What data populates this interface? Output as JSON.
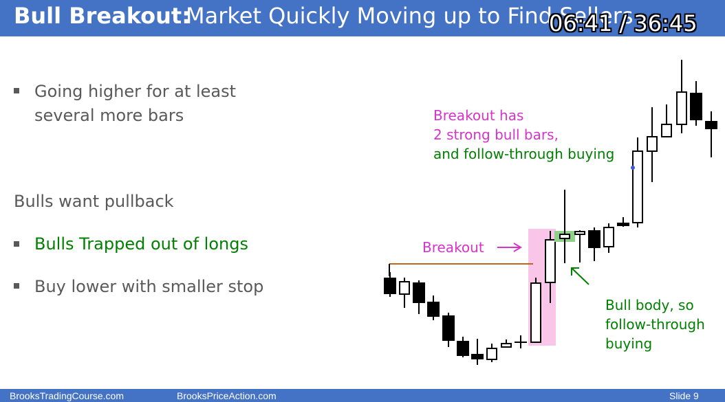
{
  "header": {
    "title_bold": "Bull Breakout:",
    "title_rest": "Market Quickly Moving up to Find Sellers",
    "timer": "06:41 / 36:45"
  },
  "bullets": {
    "item1_line1": "Going higher for at least",
    "item1_line2": "several more bars",
    "section_label": "Bulls want pullback",
    "item2": "Bulls Trapped out of longs",
    "item3": "Buy lower with smaller stop"
  },
  "annotations": {
    "breakout_label": "Breakout",
    "breakout_note_line1": "Breakout has",
    "breakout_note_line2": "2 strong bull bars,",
    "breakout_note_line3": "and follow-through buying",
    "bull_body_line1": "Bull body, so",
    "bull_body_line2": "follow-through",
    "bull_body_line3": "buying"
  },
  "footer": {
    "left": "BrooksTradingCourse.com",
    "middle": "BrooksPriceAction.com",
    "slide": "Slide  9"
  },
  "colors": {
    "title_bar": "#4472c4",
    "bullet_text": "#595959",
    "green_text": "#008000",
    "magenta_text": "#d633c9",
    "breakout_highlight": "#f9c6ea",
    "resistance_line": "#c0651a"
  }
}
